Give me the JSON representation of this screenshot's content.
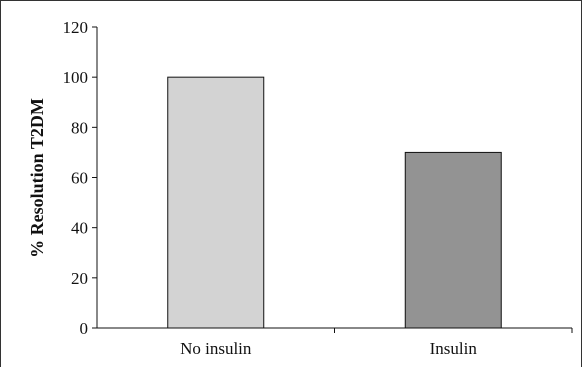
{
  "chart_data": {
    "type": "bar",
    "title": "",
    "xlabel": "",
    "ylabel": "% Resolution T2DM",
    "ylim": [
      0,
      120
    ],
    "yticks": [
      0,
      20,
      40,
      60,
      80,
      100,
      120
    ],
    "categories": [
      "No insulin",
      "Insulin"
    ],
    "values": [
      100,
      70
    ],
    "bar_colors": [
      "#d3d3d3",
      "#939393"
    ],
    "grid": false,
    "legend": "none"
  }
}
